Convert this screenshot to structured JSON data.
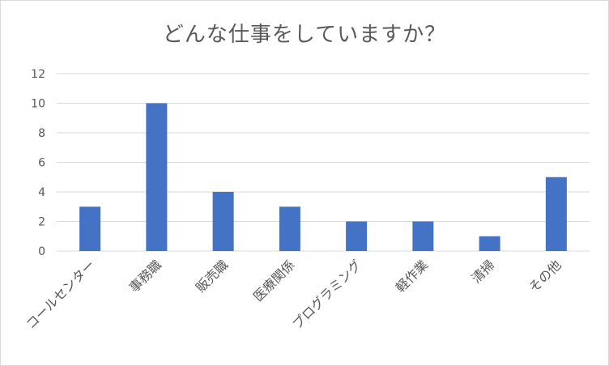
{
  "chart_data": {
    "type": "bar",
    "title": "どんな仕事をしていますか？",
    "categories": [
      "コールセンター",
      "事務職",
      "販売職",
      "医療関係",
      "プログラミング",
      "軽作業",
      "清掃",
      "その他"
    ],
    "values": [
      3,
      10,
      4,
      3,
      2,
      2,
      1,
      5
    ],
    "ylim": [
      0,
      12
    ],
    "yticks": [
      "0",
      "2",
      "4",
      "6",
      "8",
      "10",
      "12"
    ],
    "grid": true,
    "legend": "none",
    "colors": {
      "bar": "#4472c4",
      "grid": "#d9d9d9",
      "text": "#595959"
    }
  }
}
